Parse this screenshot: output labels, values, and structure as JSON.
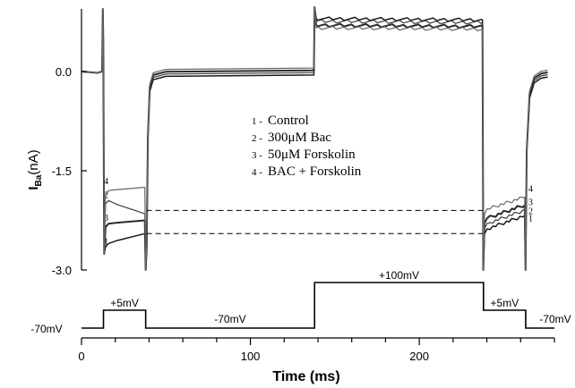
{
  "chart_data": {
    "type": "line",
    "xlabel": "Time (ms)",
    "ylabel_main": "I",
    "ylabel_sub": "Ba",
    "ylabel_unit": "(nA)",
    "xlim": [
      0,
      280
    ],
    "ylim": [
      -3.0,
      0.9
    ],
    "x_ticks": [
      0,
      100,
      200
    ],
    "y_ticks": [
      0.0,
      -1.5,
      -3.0
    ],
    "x_tick_labels": [
      "0",
      "100",
      "200"
    ],
    "y_tick_labels": [
      "0.0",
      "-1.5",
      "-3.0"
    ],
    "legend": [
      {
        "num": "1",
        "label": "Control"
      },
      {
        "num": "2",
        "label": "300μM Bac"
      },
      {
        "num": "3",
        "label": "50μM Forskolin"
      },
      {
        "num": "4",
        "label": "BAC + Forskolin"
      }
    ],
    "series": [
      {
        "name": "Control",
        "num": "1",
        "step1": [
          -2.6,
          -2.45
        ],
        "step2": [
          0.8,
          0.78
        ],
        "step3": [
          -2.38,
          -2.18
        ]
      },
      {
        "name": "300μM Bac",
        "num": "2",
        "step1": [
          -1.95,
          -2.15
        ],
        "step2": [
          0.76,
          0.74
        ],
        "step3": [
          -2.3,
          -2.1
        ]
      },
      {
        "name": "50μM Forskolin",
        "num": "3",
        "step1": [
          -2.3,
          -2.25
        ],
        "step2": [
          0.7,
          0.68
        ],
        "step3": [
          -2.22,
          -2.02
        ]
      },
      {
        "name": "BAC + Forskolin",
        "num": "4",
        "step1": [
          -1.8,
          -1.75
        ],
        "step2": [
          0.66,
          0.64
        ],
        "step3": [
          -2.08,
          -1.9
        ]
      }
    ],
    "reference_lines": [
      -2.1,
      -2.45
    ],
    "protocol": {
      "labels": [
        "-70mV",
        "+5mV",
        "-70mV",
        "+100mV",
        "+5mV",
        "-70mV"
      ],
      "steps": [
        {
          "t0": 0,
          "t1": 13,
          "level": "-70mV"
        },
        {
          "t0": 13,
          "t1": 38,
          "level": "+5mV"
        },
        {
          "t0": 38,
          "t1": 138,
          "level": "-70mV"
        },
        {
          "t0": 138,
          "t1": 238,
          "level": "+100mV"
        },
        {
          "t0": 238,
          "t1": 263,
          "level": "+5mV"
        },
        {
          "t0": 263,
          "t1": 280,
          "level": "-70mV"
        }
      ]
    }
  }
}
